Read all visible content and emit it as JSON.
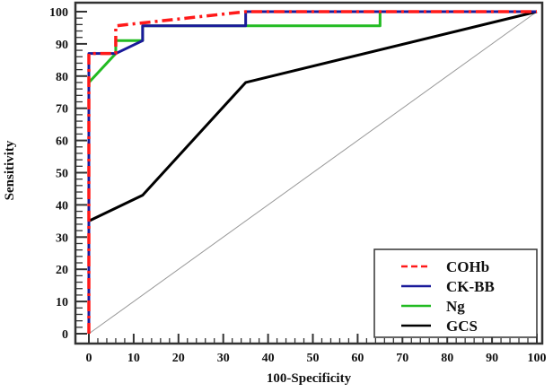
{
  "chart_data": {
    "type": "line",
    "title": "",
    "xlabel": "100-Specificity",
    "ylabel": "Sensitivity",
    "xlim": [
      0,
      100
    ],
    "ylim": [
      0,
      100
    ],
    "xticks": [
      "0",
      "10",
      "20",
      "30",
      "40",
      "50",
      "60",
      "70",
      "80",
      "90",
      "100"
    ],
    "yticks": [
      "0",
      "10",
      "20",
      "30",
      "40",
      "50",
      "60",
      "70",
      "80",
      "90",
      "100"
    ],
    "grid": false,
    "legend_position": "bottom-right",
    "reference_line": {
      "x": [
        0,
        100
      ],
      "y": [
        0,
        100
      ],
      "color": "#999999"
    },
    "series": [
      {
        "name": "GCS",
        "color": "#000000",
        "style": "solid",
        "x": [
          0,
          0,
          12,
          35,
          100
        ],
        "y": [
          0,
          35,
          43,
          78,
          100
        ]
      },
      {
        "name": "Ng",
        "color": "#22bb22",
        "style": "solid",
        "x": [
          0,
          0,
          6,
          6,
          12,
          12,
          65,
          65,
          100
        ],
        "y": [
          0,
          78,
          87,
          91,
          91,
          95.6,
          95.6,
          100,
          100
        ]
      },
      {
        "name": "CK-BB",
        "color": "#1a1a9a",
        "style": "solid",
        "x": [
          0,
          0,
          6,
          12,
          12,
          35,
          35,
          100
        ],
        "y": [
          0,
          87,
          87,
          91,
          95.6,
          95.6,
          100,
          100
        ]
      },
      {
        "name": "COHb",
        "color": "#ff1a1a",
        "style": "dashdot",
        "x": [
          0,
          0,
          6,
          6,
          35,
          100
        ],
        "y": [
          0,
          87,
          87,
          95.6,
          100,
          100
        ]
      }
    ],
    "legend_order": [
      "COHb",
      "CK-BB",
      "Ng",
      "GCS"
    ]
  }
}
